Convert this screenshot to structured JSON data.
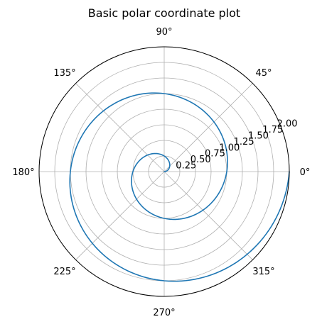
{
  "chart_data": {
    "type": "line",
    "projection": "polar",
    "title": "Basic polar coordinate plot",
    "xlabel": "",
    "ylabel": "",
    "grid": true,
    "legend": "none",
    "rlim": [
      0,
      2.0
    ],
    "theta_ticks": [
      {
        "deg": 0,
        "label": "0°"
      },
      {
        "deg": 45,
        "label": "45°"
      },
      {
        "deg": 90,
        "label": "90°"
      },
      {
        "deg": 135,
        "label": "135°"
      },
      {
        "deg": 180,
        "label": "180°"
      },
      {
        "deg": 225,
        "label": "225°"
      },
      {
        "deg": 270,
        "label": "270°"
      },
      {
        "deg": 315,
        "label": "315°"
      }
    ],
    "r_ticks": [
      {
        "value": 0.25,
        "label": "0.25"
      },
      {
        "value": 0.5,
        "label": "0.50"
      },
      {
        "value": 0.75,
        "label": "0.75"
      },
      {
        "value": 1.0,
        "label": "1.00"
      },
      {
        "value": 1.25,
        "label": "1.25"
      },
      {
        "value": 1.5,
        "label": "1.50"
      },
      {
        "value": 1.75,
        "label": "1.75"
      },
      {
        "value": 2.0,
        "label": "2.00"
      }
    ],
    "series": [
      {
        "color": "#1f77b4",
        "theta_deg": [
          0,
          22.5,
          45,
          67.5,
          90,
          112.5,
          135,
          157.5,
          180,
          202.5,
          225,
          247.5,
          270,
          292.5,
          315,
          337.5,
          360,
          382.5,
          405,
          427.5,
          450,
          472.5,
          495,
          517.5,
          540,
          562.5,
          585,
          607.5,
          630,
          652.5,
          675,
          697.5,
          720
        ],
        "r": [
          0,
          0.0625,
          0.125,
          0.1875,
          0.25,
          0.3125,
          0.375,
          0.4375,
          0.5,
          0.5625,
          0.625,
          0.6875,
          0.75,
          0.8125,
          0.875,
          0.9375,
          1.0,
          1.0625,
          1.125,
          1.1875,
          1.25,
          1.3125,
          1.375,
          1.4375,
          1.5,
          1.5625,
          1.625,
          1.6875,
          1.75,
          1.8125,
          1.875,
          1.9375,
          2.0
        ]
      }
    ]
  }
}
